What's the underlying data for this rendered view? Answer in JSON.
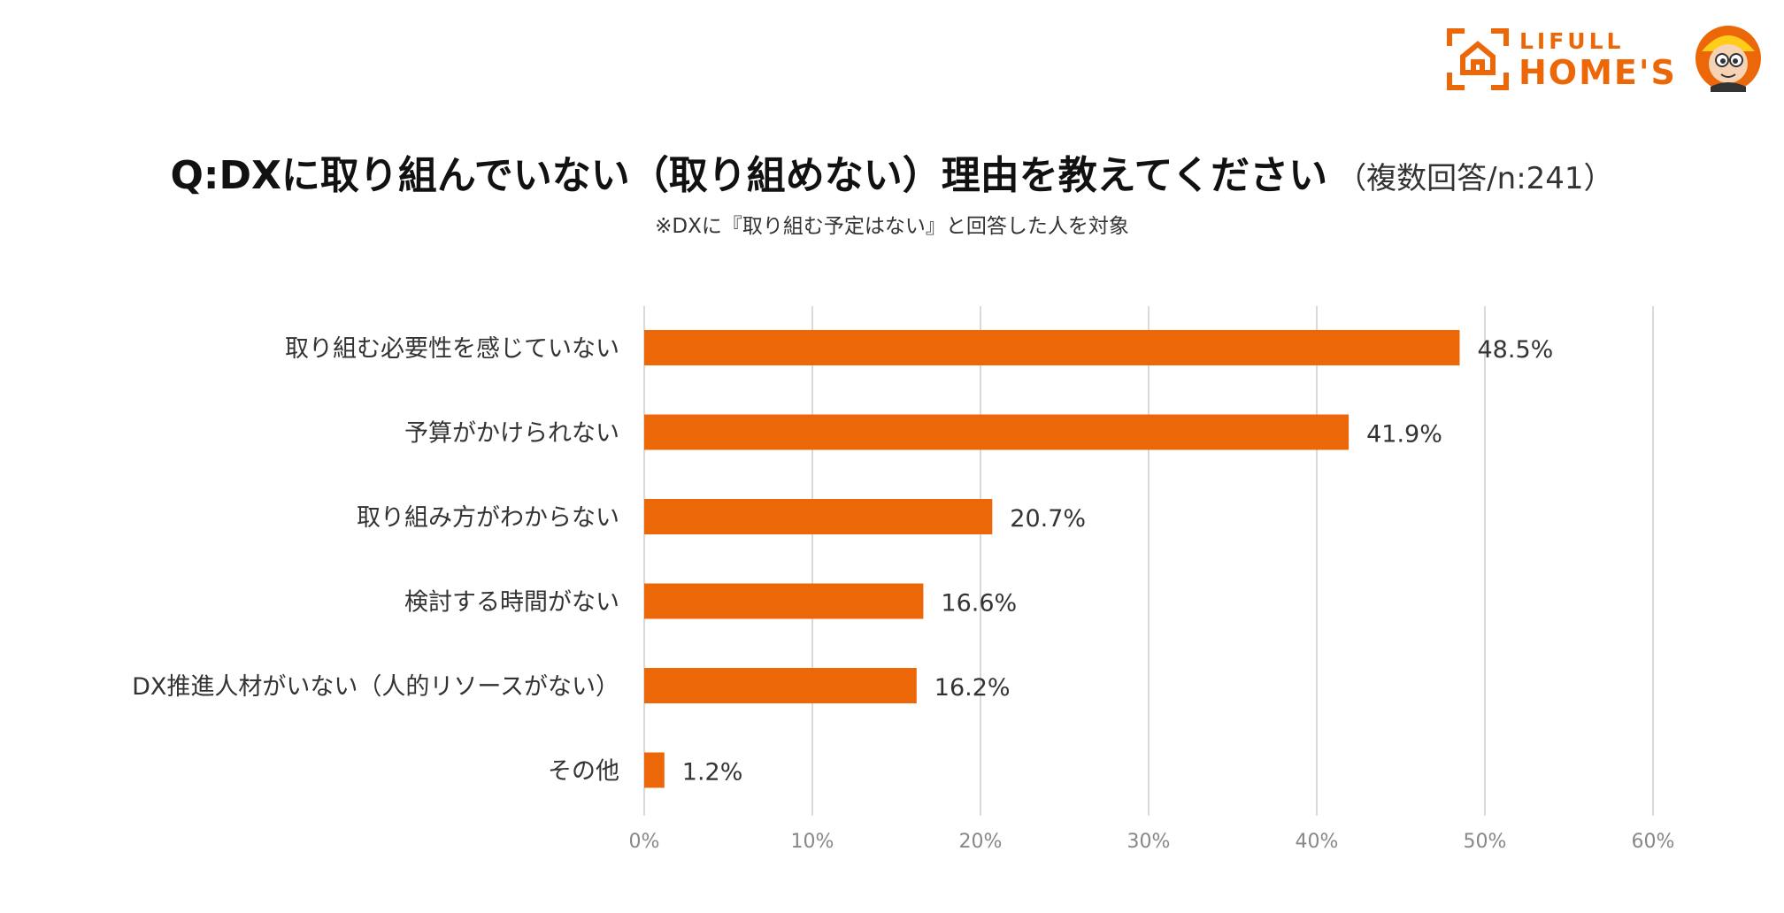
{
  "logo": {
    "top_text": "LIFULL",
    "bottom_text": "HOME'S",
    "brand_color": "#ec6707",
    "icon": "house-frame-icon",
    "mascot": "mascot-icon"
  },
  "title": {
    "main": "Q:DXに取り組んでいない（取り組めない）理由を教えてください",
    "sub": "（複数回答/n:241）"
  },
  "note": "※DXに『取り組む予定はない』と回答した人を対象",
  "chart_data": {
    "type": "bar",
    "orientation": "horizontal",
    "categories": [
      "取り組む必要性を感じていない",
      "予算がかけられない",
      "取り組み方がわからない",
      "検討する時間がない",
      "DX推進人材がいない（人的リソースがない）",
      "その他"
    ],
    "values": [
      48.5,
      41.9,
      20.7,
      16.6,
      16.2,
      1.2
    ],
    "value_labels": [
      "48.5%",
      "41.9%",
      "20.7%",
      "16.6%",
      "16.2%",
      "1.2%"
    ],
    "xlim": [
      0,
      60
    ],
    "ticks": [
      0,
      10,
      20,
      30,
      40,
      50,
      60
    ],
    "tick_labels": [
      "0%",
      "10%",
      "20%",
      "30%",
      "40%",
      "50%",
      "60%"
    ],
    "grid": "vertical",
    "bar_color": "#ec6707",
    "grid_color": "#d9d9d9"
  }
}
